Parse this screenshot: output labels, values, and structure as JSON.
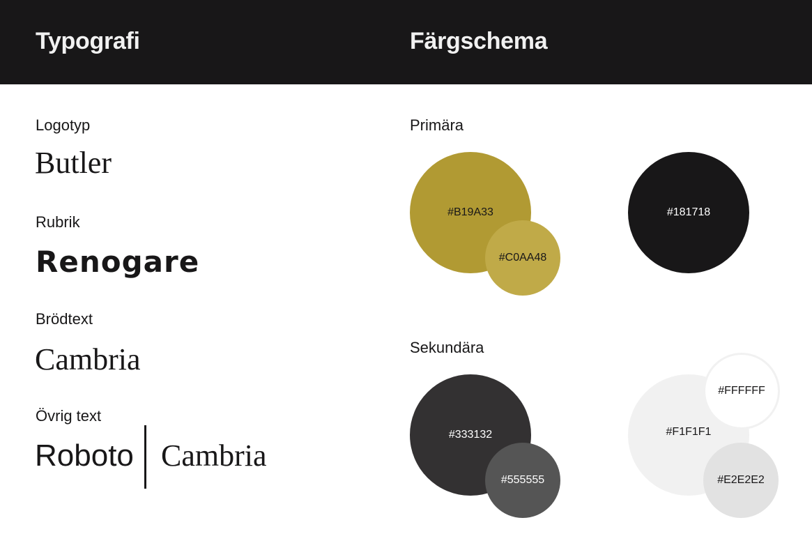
{
  "header": {
    "typography_title": "Typografi",
    "colors_title": "Färgschema"
  },
  "typography": {
    "logo": {
      "label": "Logotyp",
      "sample": "Butler"
    },
    "heading": {
      "label": "Rubrik",
      "sample": "Renogare"
    },
    "body": {
      "label": "Brödtext",
      "sample": "Cambria"
    },
    "other": {
      "label": "Övrig text",
      "sample_a": "Roboto",
      "sample_b": "Cambria"
    }
  },
  "colors": {
    "primary": {
      "label": "Primära",
      "swatches": [
        {
          "hex": "#B19A33",
          "color": "#B19A33",
          "text": "#181718"
        },
        {
          "hex": "#C0AA48",
          "color": "#C0AA48",
          "text": "#181718"
        },
        {
          "hex": "#181718",
          "color": "#181718",
          "text": "#ffffff"
        }
      ]
    },
    "secondary": {
      "label": "Sekundära",
      "swatches": [
        {
          "hex": "#333132",
          "color": "#333132",
          "text": "#ffffff"
        },
        {
          "hex": "#555555",
          "color": "#555555",
          "text": "#ffffff"
        },
        {
          "hex": "#F1F1F1",
          "color": "#F1F1F1",
          "text": "#181718"
        },
        {
          "hex": "#FFFFFF",
          "color": "#FFFFFF",
          "text": "#181718"
        },
        {
          "hex": "#E2E2E2",
          "color": "#E2E2E2",
          "text": "#181718"
        }
      ]
    }
  }
}
